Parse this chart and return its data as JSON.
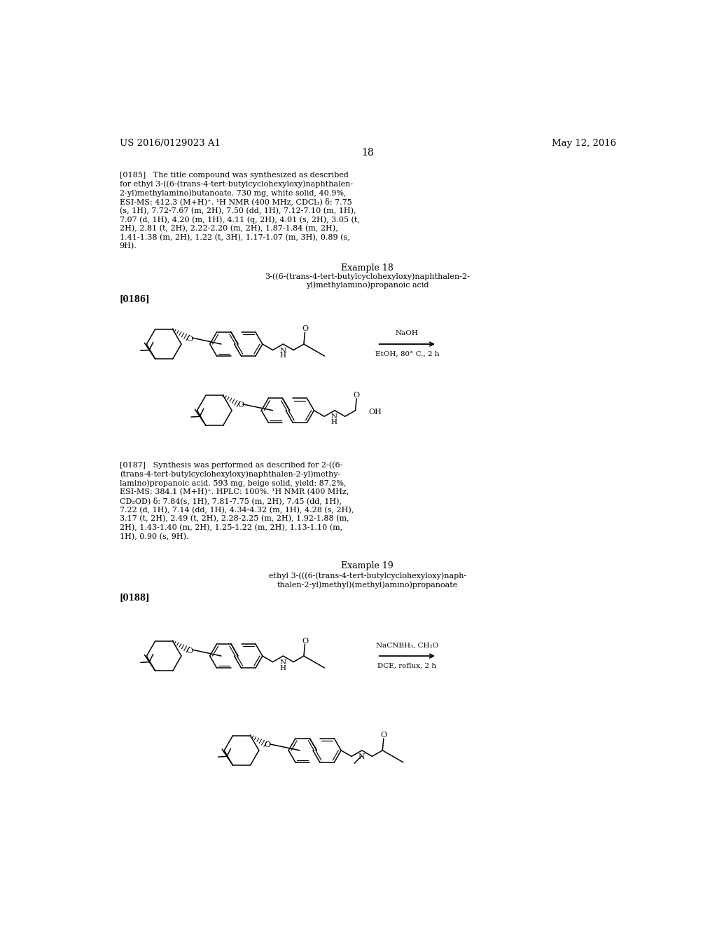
{
  "page_width": 10.24,
  "page_height": 13.2,
  "background_color": "#ffffff",
  "header_left": "US 2016/0129023 A1",
  "header_right": "May 12, 2016",
  "page_number": "18",
  "header_font_size": 9.5,
  "page_num_font_size": 10,
  "body_font_size": 8.0,
  "example_font_size": 9,
  "label_font_size": 8.5,
  "reagent1_line1": "NaOH",
  "reagent1_line2": "EtOH, 80° C., 2 h",
  "reagent2_line1": "NaCNBH₃, CH₂O",
  "reagent2_line2": "DCE, reflux, 2 h"
}
